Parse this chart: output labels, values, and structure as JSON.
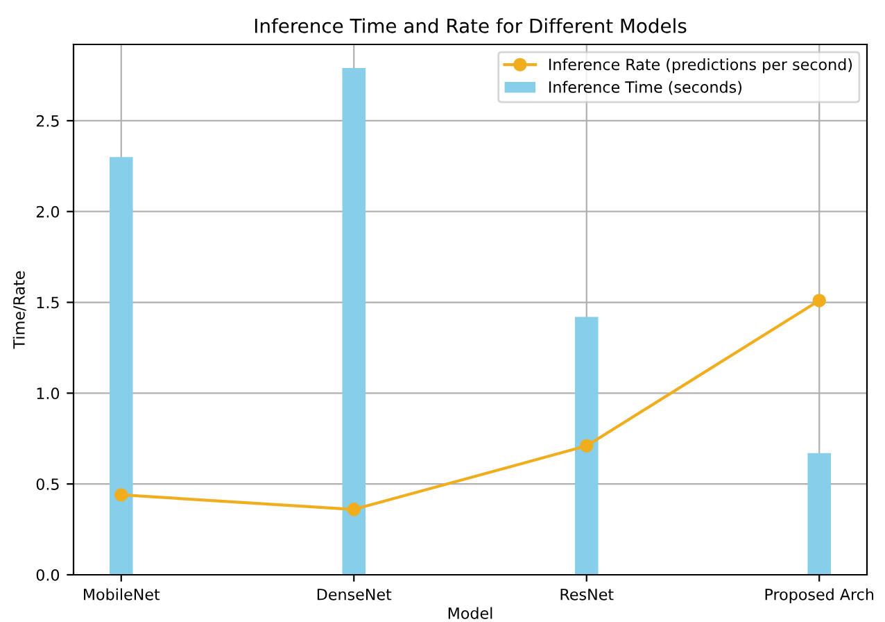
{
  "chart_data": {
    "type": "bar",
    "title": "Inference Time and Rate for Different Models",
    "xlabel": "Model",
    "ylabel": "Time/Rate",
    "categories": [
      "MobileNet",
      "DenseNet",
      "ResNet",
      "Proposed Arch"
    ],
    "series": [
      {
        "name": "Inference Rate (predictions per second)",
        "type": "line",
        "color": "#f0ad1e",
        "marker": "circle",
        "values": [
          0.44,
          0.36,
          0.71,
          1.51
        ]
      },
      {
        "name": "Inference Time (seconds)",
        "color": "#87ceeb",
        "values": [
          2.3,
          2.79,
          1.42,
          0.67
        ]
      }
    ],
    "ylim": [
      0,
      2.92
    ],
    "yticks": [
      {
        "value": 0,
        "label": "0.0"
      },
      0.5,
      {
        "value": 1,
        "label": "1.0"
      },
      1.5,
      {
        "value": 2,
        "label": "2.0"
      },
      2.5
    ],
    "grid": true,
    "legend": "top right"
  }
}
